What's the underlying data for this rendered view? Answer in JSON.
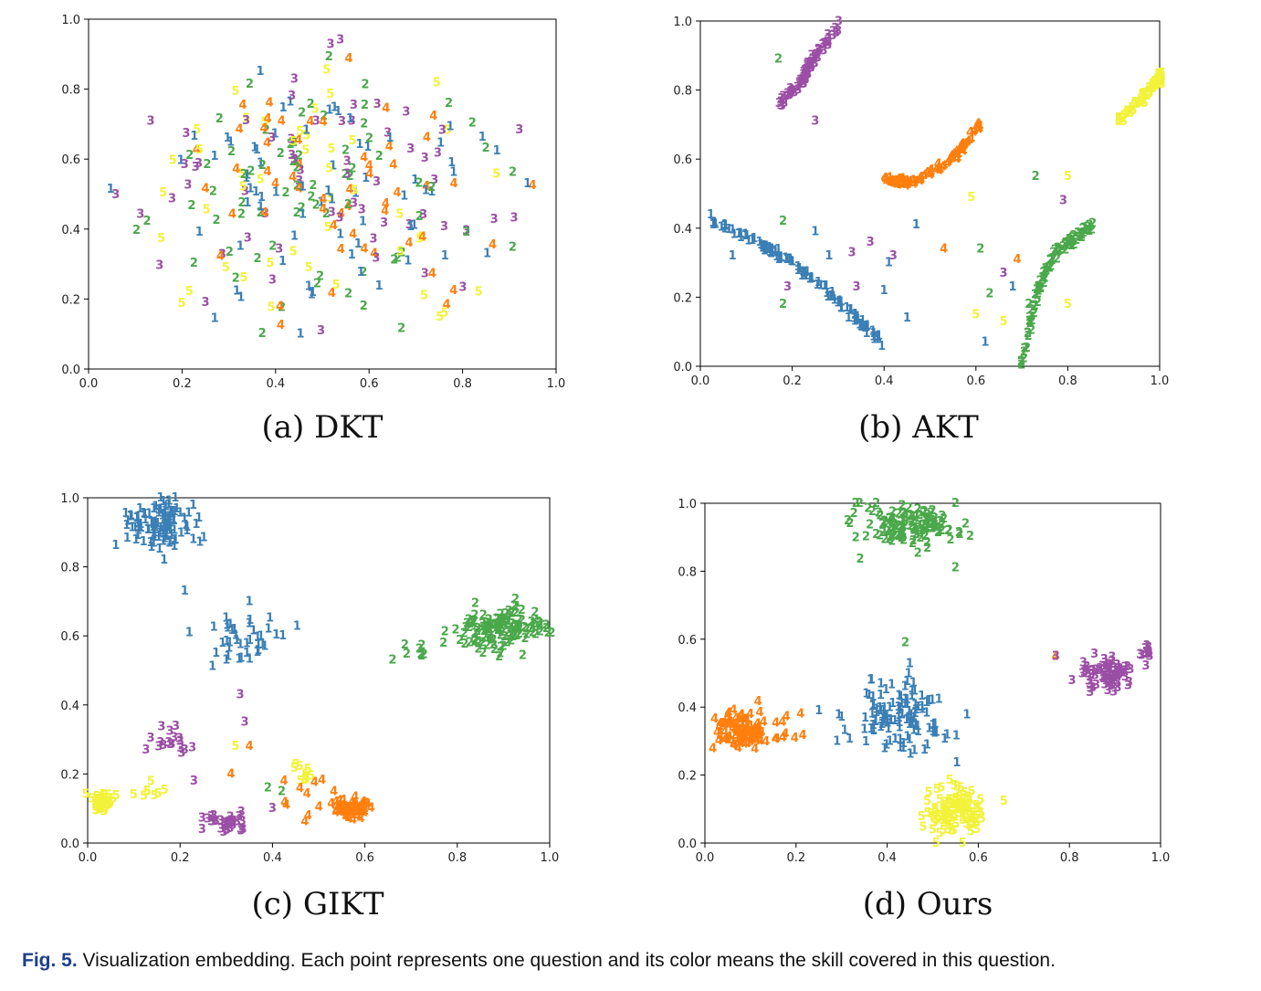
{
  "figure_caption": {
    "label": "Fig. 5.",
    "text": "Visualization embedding. Each point represents one question and its color means the skill covered in this question."
  },
  "skill_colors": {
    "1": "#3a7fb5",
    "2": "#4aa84a",
    "3": "#9b4ea5",
    "4": "#ff7f0e",
    "5": "#f2f23a"
  },
  "chart_data": [
    {
      "type": "scatter",
      "caption": "(a) DKT",
      "xlim": [
        0,
        1
      ],
      "ylim": [
        0,
        1
      ],
      "xticks": [
        "0.0",
        "0.2",
        "0.4",
        "0.6",
        "0.8",
        "1.0"
      ],
      "yticks": [
        "0.0",
        "0.2",
        "0.4",
        "0.6",
        "0.8",
        "1.0"
      ],
      "clusters": [
        {
          "label": "1",
          "cx": 0.5,
          "cy": 0.5,
          "sx": 0.2,
          "sy": 0.2,
          "n": 70
        },
        {
          "label": "2",
          "cx": 0.5,
          "cy": 0.5,
          "sx": 0.2,
          "sy": 0.2,
          "n": 70
        },
        {
          "label": "3",
          "cx": 0.5,
          "cy": 0.5,
          "sx": 0.2,
          "sy": 0.2,
          "n": 60
        },
        {
          "label": "4",
          "cx": 0.5,
          "cy": 0.5,
          "sx": 0.2,
          "sy": 0.2,
          "n": 55
        },
        {
          "label": "5",
          "cx": 0.5,
          "cy": 0.5,
          "sx": 0.2,
          "sy": 0.2,
          "n": 45
        }
      ]
    },
    {
      "type": "scatter",
      "caption": "(b) AKT",
      "xlim": [
        0,
        1
      ],
      "ylim": [
        0,
        1
      ],
      "xticks": [
        "0.0",
        "0.2",
        "0.4",
        "0.6",
        "0.8",
        "1.0"
      ],
      "yticks": [
        "0.0",
        "0.2",
        "0.4",
        "0.6",
        "0.8",
        "1.0"
      ],
      "curves": [
        {
          "label": "1",
          "points": [
            [
              0.0,
              0.44
            ],
            [
              0.12,
              0.36
            ],
            [
              0.2,
              0.3
            ],
            [
              0.3,
              0.19
            ],
            [
              0.4,
              0.06
            ]
          ],
          "n": 120
        },
        {
          "label": "3",
          "points": [
            [
              0.17,
              0.75
            ],
            [
              0.22,
              0.82
            ],
            [
              0.25,
              0.9
            ],
            [
              0.31,
              1.0
            ]
          ],
          "n": 80
        },
        {
          "label": "4",
          "points": [
            [
              0.4,
              0.54
            ],
            [
              0.46,
              0.53
            ],
            [
              0.55,
              0.6
            ],
            [
              0.61,
              0.7
            ]
          ],
          "n": 80
        },
        {
          "label": "2",
          "points": [
            [
              0.7,
              0.0
            ],
            [
              0.73,
              0.2
            ],
            [
              0.77,
              0.32
            ],
            [
              0.85,
              0.41
            ]
          ],
          "n": 90
        },
        {
          "label": "5",
          "points": [
            [
              0.91,
              0.71
            ],
            [
              0.98,
              0.8
            ],
            [
              1.01,
              0.84
            ]
          ],
          "n": 70
        }
      ],
      "scatter": [
        {
          "label": "2",
          "x": 0.17,
          "y": 0.89
        },
        {
          "label": "3",
          "x": 0.25,
          "y": 0.71
        },
        {
          "label": "2",
          "x": 0.18,
          "y": 0.42
        },
        {
          "label": "1",
          "x": 0.25,
          "y": 0.39
        },
        {
          "label": "1",
          "x": 0.07,
          "y": 0.32
        },
        {
          "label": "1",
          "x": 0.28,
          "y": 0.32
        },
        {
          "label": "3",
          "x": 0.33,
          "y": 0.33
        },
        {
          "label": "3",
          "x": 0.37,
          "y": 0.36
        },
        {
          "label": "3",
          "x": 0.42,
          "y": 0.32
        },
        {
          "label": "1",
          "x": 0.41,
          "y": 0.3
        },
        {
          "label": "3",
          "x": 0.19,
          "y": 0.23
        },
        {
          "label": "2",
          "x": 0.18,
          "y": 0.18
        },
        {
          "label": "3",
          "x": 0.34,
          "y": 0.23
        },
        {
          "label": "1",
          "x": 0.4,
          "y": 0.22
        },
        {
          "label": "1",
          "x": 0.45,
          "y": 0.14
        },
        {
          "label": "1",
          "x": 0.47,
          "y": 0.41
        },
        {
          "label": "4",
          "x": 0.53,
          "y": 0.34
        },
        {
          "label": "2",
          "x": 0.61,
          "y": 0.34
        },
        {
          "label": "5",
          "x": 0.59,
          "y": 0.49
        },
        {
          "label": "2",
          "x": 0.73,
          "y": 0.55
        },
        {
          "label": "5",
          "x": 0.8,
          "y": 0.55
        },
        {
          "label": "3",
          "x": 0.79,
          "y": 0.48
        },
        {
          "label": "3",
          "x": 0.66,
          "y": 0.27
        },
        {
          "label": "2",
          "x": 0.63,
          "y": 0.21
        },
        {
          "label": "1",
          "x": 0.68,
          "y": 0.23
        },
        {
          "label": "5",
          "x": 0.6,
          "y": 0.15
        },
        {
          "label": "5",
          "x": 0.66,
          "y": 0.13
        },
        {
          "label": "1",
          "x": 0.62,
          "y": 0.07
        },
        {
          "label": "5",
          "x": 0.8,
          "y": 0.18
        },
        {
          "label": "4",
          "x": 0.69,
          "y": 0.31
        }
      ]
    },
    {
      "type": "scatter",
      "caption": "(c) GIKT",
      "xlim": [
        0,
        1
      ],
      "ylim": [
        0,
        1
      ],
      "xticks": [
        "0.0",
        "0.2",
        "0.4",
        "0.6",
        "0.8",
        "1.0"
      ],
      "yticks": [
        "0.0",
        "0.2",
        "0.4",
        "0.6",
        "0.8",
        "1.0"
      ],
      "clusters": [
        {
          "label": "1",
          "cx": 0.15,
          "cy": 0.92,
          "sx": 0.035,
          "sy": 0.035,
          "n": 110
        },
        {
          "label": "1",
          "cx": 0.34,
          "cy": 0.58,
          "sx": 0.04,
          "sy": 0.04,
          "n": 40
        },
        {
          "label": "2",
          "cx": 0.89,
          "cy": 0.62,
          "sx": 0.05,
          "sy": 0.035,
          "n": 130
        },
        {
          "label": "2",
          "cx": 0.71,
          "cy": 0.55,
          "sx": 0.02,
          "sy": 0.02,
          "n": 7
        },
        {
          "label": "3",
          "cx": 0.18,
          "cy": 0.29,
          "sx": 0.03,
          "sy": 0.025,
          "n": 18
        },
        {
          "label": "3",
          "cx": 0.3,
          "cy": 0.05,
          "sx": 0.025,
          "sy": 0.02,
          "n": 30
        },
        {
          "label": "4",
          "cx": 0.57,
          "cy": 0.1,
          "sx": 0.02,
          "sy": 0.015,
          "n": 70
        },
        {
          "label": "4",
          "cx": 0.48,
          "cy": 0.13,
          "sx": 0.04,
          "sy": 0.03,
          "n": 12
        },
        {
          "label": "5",
          "cx": 0.03,
          "cy": 0.12,
          "sx": 0.012,
          "sy": 0.012,
          "n": 50
        },
        {
          "label": "5",
          "cx": 0.46,
          "cy": 0.21,
          "sx": 0.015,
          "sy": 0.015,
          "n": 10
        },
        {
          "label": "5",
          "cx": 0.14,
          "cy": 0.15,
          "sx": 0.02,
          "sy": 0.02,
          "n": 8
        }
      ],
      "scatter": [
        {
          "label": "1",
          "x": 0.21,
          "y": 0.73
        },
        {
          "label": "1",
          "x": 0.22,
          "y": 0.61
        },
        {
          "label": "3",
          "x": 0.33,
          "y": 0.43
        },
        {
          "label": "3",
          "x": 0.34,
          "y": 0.35
        },
        {
          "label": "3",
          "x": 0.23,
          "y": 0.18
        },
        {
          "label": "4",
          "x": 0.31,
          "y": 0.2
        },
        {
          "label": "5",
          "x": 0.32,
          "y": 0.28
        },
        {
          "label": "4",
          "x": 0.35,
          "y": 0.28
        },
        {
          "label": "2",
          "x": 0.39,
          "y": 0.16
        },
        {
          "label": "2",
          "x": 0.42,
          "y": 0.15
        },
        {
          "label": "3",
          "x": 0.4,
          "y": 0.1
        },
        {
          "label": "4",
          "x": 0.43,
          "y": 0.11
        },
        {
          "label": "3",
          "x": 0.26,
          "y": 0.07
        },
        {
          "label": "2",
          "x": 0.77,
          "y": 0.58
        },
        {
          "label": "2",
          "x": 0.66,
          "y": 0.53
        }
      ]
    },
    {
      "type": "scatter",
      "caption": "(d) Ours",
      "xlim": [
        0,
        1
      ],
      "ylim": [
        0,
        1
      ],
      "xticks": [
        "0.0",
        "0.2",
        "0.4",
        "0.6",
        "0.8",
        "1.0"
      ],
      "yticks": [
        "0.0",
        "0.2",
        "0.4",
        "0.6",
        "0.8",
        "1.0"
      ],
      "clusters": [
        {
          "label": "2",
          "cx": 0.45,
          "cy": 0.93,
          "sx": 0.06,
          "sy": 0.03,
          "n": 120
        },
        {
          "label": "1",
          "cx": 0.43,
          "cy": 0.38,
          "sx": 0.05,
          "sy": 0.06,
          "n": 120
        },
        {
          "label": "3",
          "cx": 0.88,
          "cy": 0.5,
          "sx": 0.03,
          "sy": 0.025,
          "n": 70
        },
        {
          "label": "3",
          "cx": 0.97,
          "cy": 0.56,
          "sx": 0.008,
          "sy": 0.008,
          "n": 12
        },
        {
          "label": "4",
          "cx": 0.09,
          "cy": 0.33,
          "sx": 0.035,
          "sy": 0.03,
          "n": 100
        },
        {
          "label": "5",
          "cx": 0.55,
          "cy": 0.09,
          "sx": 0.035,
          "sy": 0.035,
          "n": 110
        }
      ],
      "scatter": [
        {
          "label": "4",
          "x": 0.21,
          "y": 0.38
        },
        {
          "label": "1",
          "x": 0.25,
          "y": 0.39
        },
        {
          "label": "1",
          "x": 0.29,
          "y": 0.3
        },
        {
          "label": "2",
          "x": 0.44,
          "y": 0.59
        },
        {
          "label": "2",
          "x": 0.55,
          "y": 1.0
        },
        {
          "label": "2",
          "x": 0.55,
          "y": 0.81
        },
        {
          "label": "3",
          "x": 0.77,
          "y": 0.55
        },
        {
          "label": "4",
          "x": 0.77,
          "y": 0.55
        }
      ]
    }
  ]
}
